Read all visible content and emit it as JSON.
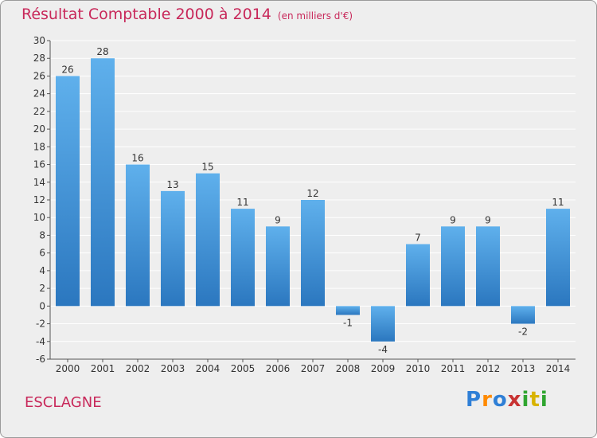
{
  "title": "Résultat Comptable 2000 à 2014",
  "unit_note": "(en milliers d'€)",
  "place_name": "ESCLAGNE",
  "logo": {
    "text": "Proxiti",
    "letters": [
      "P",
      "r",
      "o",
      "x",
      "i",
      "t",
      "i"
    ]
  },
  "colors": {
    "bar": "#3a8ad0",
    "title": "#c8285a",
    "background": "#eeeeee",
    "grid": "#ffffff"
  },
  "chart_data": {
    "type": "bar",
    "title": "Résultat Comptable 2000 à 2014",
    "ylabel": "(en milliers d'€)",
    "xlabel": "",
    "categories": [
      "2000",
      "2001",
      "2002",
      "2003",
      "2004",
      "2005",
      "2006",
      "2007",
      "2008",
      "2009",
      "2010",
      "2011",
      "2012",
      "2013",
      "2014"
    ],
    "values": [
      26,
      28,
      16,
      13,
      15,
      11,
      9,
      12,
      -1,
      -4,
      7,
      9,
      9,
      -2,
      11
    ],
    "ylim": [
      -6,
      30
    ],
    "yticks": [
      -6,
      -4,
      -2,
      0,
      2,
      4,
      6,
      8,
      10,
      12,
      14,
      16,
      18,
      20,
      22,
      24,
      26,
      28,
      30
    ],
    "grid": true
  }
}
